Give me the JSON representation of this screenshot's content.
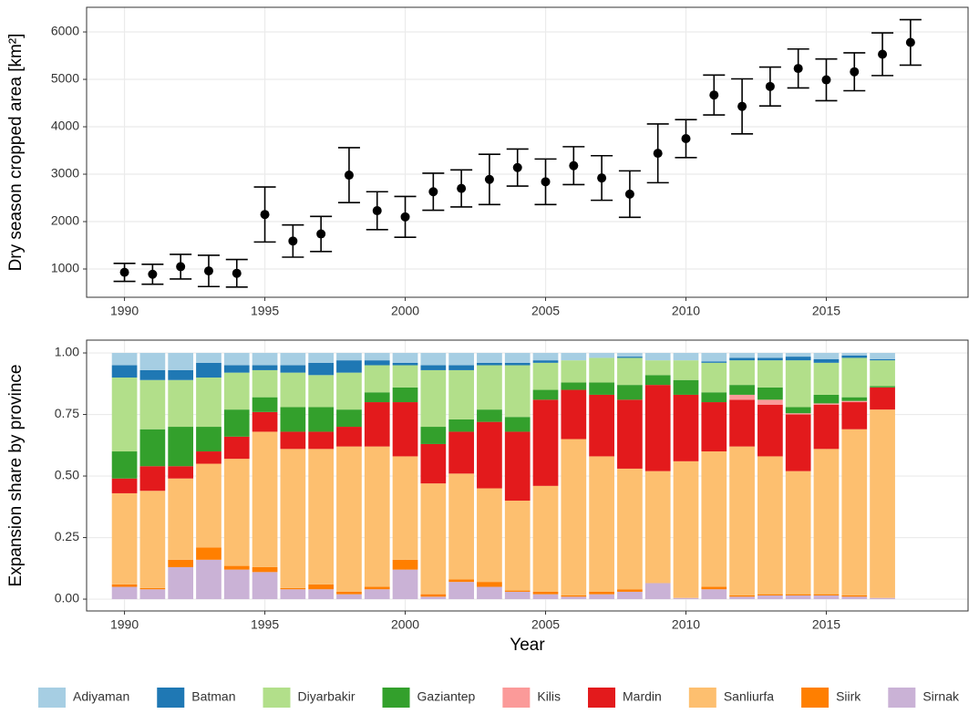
{
  "chart_data": [
    {
      "type": "scatter",
      "ylabel": "Dry season cropped area [km²]",
      "x": [
        1990,
        1991,
        1992,
        1993,
        1994,
        1995,
        1996,
        1997,
        1998,
        1999,
        2000,
        2001,
        2002,
        2003,
        2004,
        2005,
        2006,
        2007,
        2008,
        2009,
        2010,
        2011,
        2012,
        2013,
        2014,
        2015,
        2016,
        2017,
        2018
      ],
      "values": [
        930,
        890,
        1050,
        960,
        910,
        2150,
        1590,
        1740,
        2980,
        2230,
        2100,
        2630,
        2700,
        2890,
        3140,
        2840,
        3180,
        2920,
        2580,
        3440,
        3750,
        4670,
        4430,
        4850,
        5230,
        4990,
        5160,
        5530,
        5780
      ],
      "errors": [
        190,
        210,
        260,
        330,
        290,
        580,
        340,
        370,
        580,
        400,
        430,
        390,
        390,
        530,
        390,
        480,
        400,
        470,
        490,
        620,
        400,
        420,
        580,
        410,
        410,
        440,
        400,
        450,
        480
      ],
      "color": "#000000",
      "xlim": [
        1988.65,
        2020.05
      ],
      "xticks": [
        1990,
        1995,
        2000,
        2005,
        2010,
        2015
      ],
      "ylim": [
        404,
        6520
      ],
      "yticks": [
        1000,
        2000,
        3000,
        4000,
        5000,
        6000
      ],
      "grid": true
    },
    {
      "type": "bar",
      "stacked": true,
      "xlabel": "Year",
      "ylabel": "Expansion share by province",
      "x": [
        1990,
        1991,
        1992,
        1993,
        1994,
        1995,
        1996,
        1997,
        1998,
        1999,
        2000,
        2001,
        2002,
        2003,
        2004,
        2005,
        2006,
        2007,
        2008,
        2009,
        2010,
        2011,
        2012,
        2013,
        2014,
        2015,
        2016,
        2017
      ],
      "series": [
        {
          "name": "Adiyaman",
          "color": "#a6cee3",
          "values": [
            0.05,
            0.07,
            0.07,
            0.04,
            0.05,
            0.05,
            0.05,
            0.04,
            0.03,
            0.03,
            0.04,
            0.05,
            0.05,
            0.04,
            0.04,
            0.03,
            0.03,
            0.02,
            0.015,
            0.03,
            0.03,
            0.035,
            0.02,
            0.02,
            0.015,
            0.025,
            0.01,
            0.025
          ]
        },
        {
          "name": "Batman",
          "color": "#1f78b4",
          "values": [
            0.05,
            0.04,
            0.04,
            0.06,
            0.03,
            0.02,
            0.03,
            0.05,
            0.05,
            0.02,
            0.01,
            0.02,
            0.02,
            0.01,
            0.01,
            0.01,
            0,
            0,
            0.005,
            0,
            0,
            0.005,
            0.01,
            0.01,
            0.015,
            0.015,
            0.01,
            0.005
          ]
        },
        {
          "name": "Diyarbakir",
          "color": "#b2df8a",
          "values": [
            0.3,
            0.2,
            0.19,
            0.2,
            0.15,
            0.11,
            0.14,
            0.13,
            0.15,
            0.11,
            0.09,
            0.23,
            0.2,
            0.18,
            0.21,
            0.11,
            0.09,
            0.1,
            0.11,
            0.06,
            0.08,
            0.12,
            0.1,
            0.11,
            0.19,
            0.13,
            0.16,
            0.105
          ]
        },
        {
          "name": "Gaziantep",
          "color": "#33a02c",
          "values": [
            0.11,
            0.15,
            0.16,
            0.1,
            0.11,
            0.06,
            0.1,
            0.1,
            0.07,
            0.04,
            0.06,
            0.07,
            0.05,
            0.05,
            0.06,
            0.04,
            0.03,
            0.05,
            0.06,
            0.04,
            0.06,
            0.04,
            0.04,
            0.05,
            0.025,
            0.035,
            0.015,
            0.005
          ]
        },
        {
          "name": "Kilis",
          "color": "#fb9a99",
          "values": [
            0,
            0,
            0,
            0,
            0,
            0,
            0,
            0,
            0,
            0,
            0,
            0,
            0,
            0,
            0,
            0,
            0,
            0,
            0,
            0,
            0,
            0,
            0.02,
            0.02,
            0.005,
            0.005,
            0.005,
            0
          ]
        },
        {
          "name": "Mardin",
          "color": "#e31a1c",
          "values": [
            0.06,
            0.1,
            0.05,
            0.05,
            0.09,
            0.08,
            0.07,
            0.07,
            0.08,
            0.18,
            0.22,
            0.16,
            0.17,
            0.27,
            0.28,
            0.35,
            0.2,
            0.25,
            0.28,
            0.35,
            0.27,
            0.2,
            0.19,
            0.21,
            0.23,
            0.18,
            0.11,
            0.09
          ]
        },
        {
          "name": "Sanliurfa",
          "color": "#fdbf6f",
          "values": [
            0.37,
            0.395,
            0.33,
            0.34,
            0.435,
            0.55,
            0.565,
            0.55,
            0.59,
            0.57,
            0.42,
            0.45,
            0.43,
            0.38,
            0.365,
            0.43,
            0.635,
            0.55,
            0.49,
            0.455,
            0.555,
            0.55,
            0.605,
            0.56,
            0.5,
            0.59,
            0.675,
            0.765
          ]
        },
        {
          "name": "Siirk",
          "color": "#ff7f00",
          "values": [
            0.01,
            0.005,
            0.03,
            0.05,
            0.015,
            0.02,
            0.005,
            0.02,
            0.01,
            0.01,
            0.04,
            0.01,
            0.01,
            0.02,
            0.005,
            0.01,
            0.005,
            0.01,
            0.01,
            0,
            0,
            0.01,
            0.005,
            0.005,
            0.005,
            0.005,
            0.005,
            0
          ]
        },
        {
          "name": "Sirnak",
          "color": "#cab2d6",
          "values": [
            0.05,
            0.04,
            0.13,
            0.16,
            0.12,
            0.11,
            0.04,
            0.04,
            0.02,
            0.04,
            0.12,
            0.01,
            0.07,
            0.05,
            0.03,
            0.02,
            0.01,
            0.02,
            0.03,
            0.065,
            0.005,
            0.04,
            0.01,
            0.015,
            0.015,
            0.015,
            0.01,
            0.005
          ]
        }
      ],
      "xlim": [
        1988.65,
        2020.05
      ],
      "xticks": [
        1990,
        1995,
        2000,
        2005,
        2010,
        2015
      ],
      "ylim": [
        -0.048,
        1.052
      ],
      "yticks": [
        {
          "value": 0,
          "label": "0.00"
        },
        {
          "value": 0.25,
          "label": "0.25"
        },
        {
          "value": 0.5,
          "label": "0.50"
        },
        {
          "value": 0.75,
          "label": "0.75"
        },
        {
          "value": 1,
          "label": "1.00"
        }
      ],
      "grid": true,
      "legend": "bottom"
    }
  ]
}
